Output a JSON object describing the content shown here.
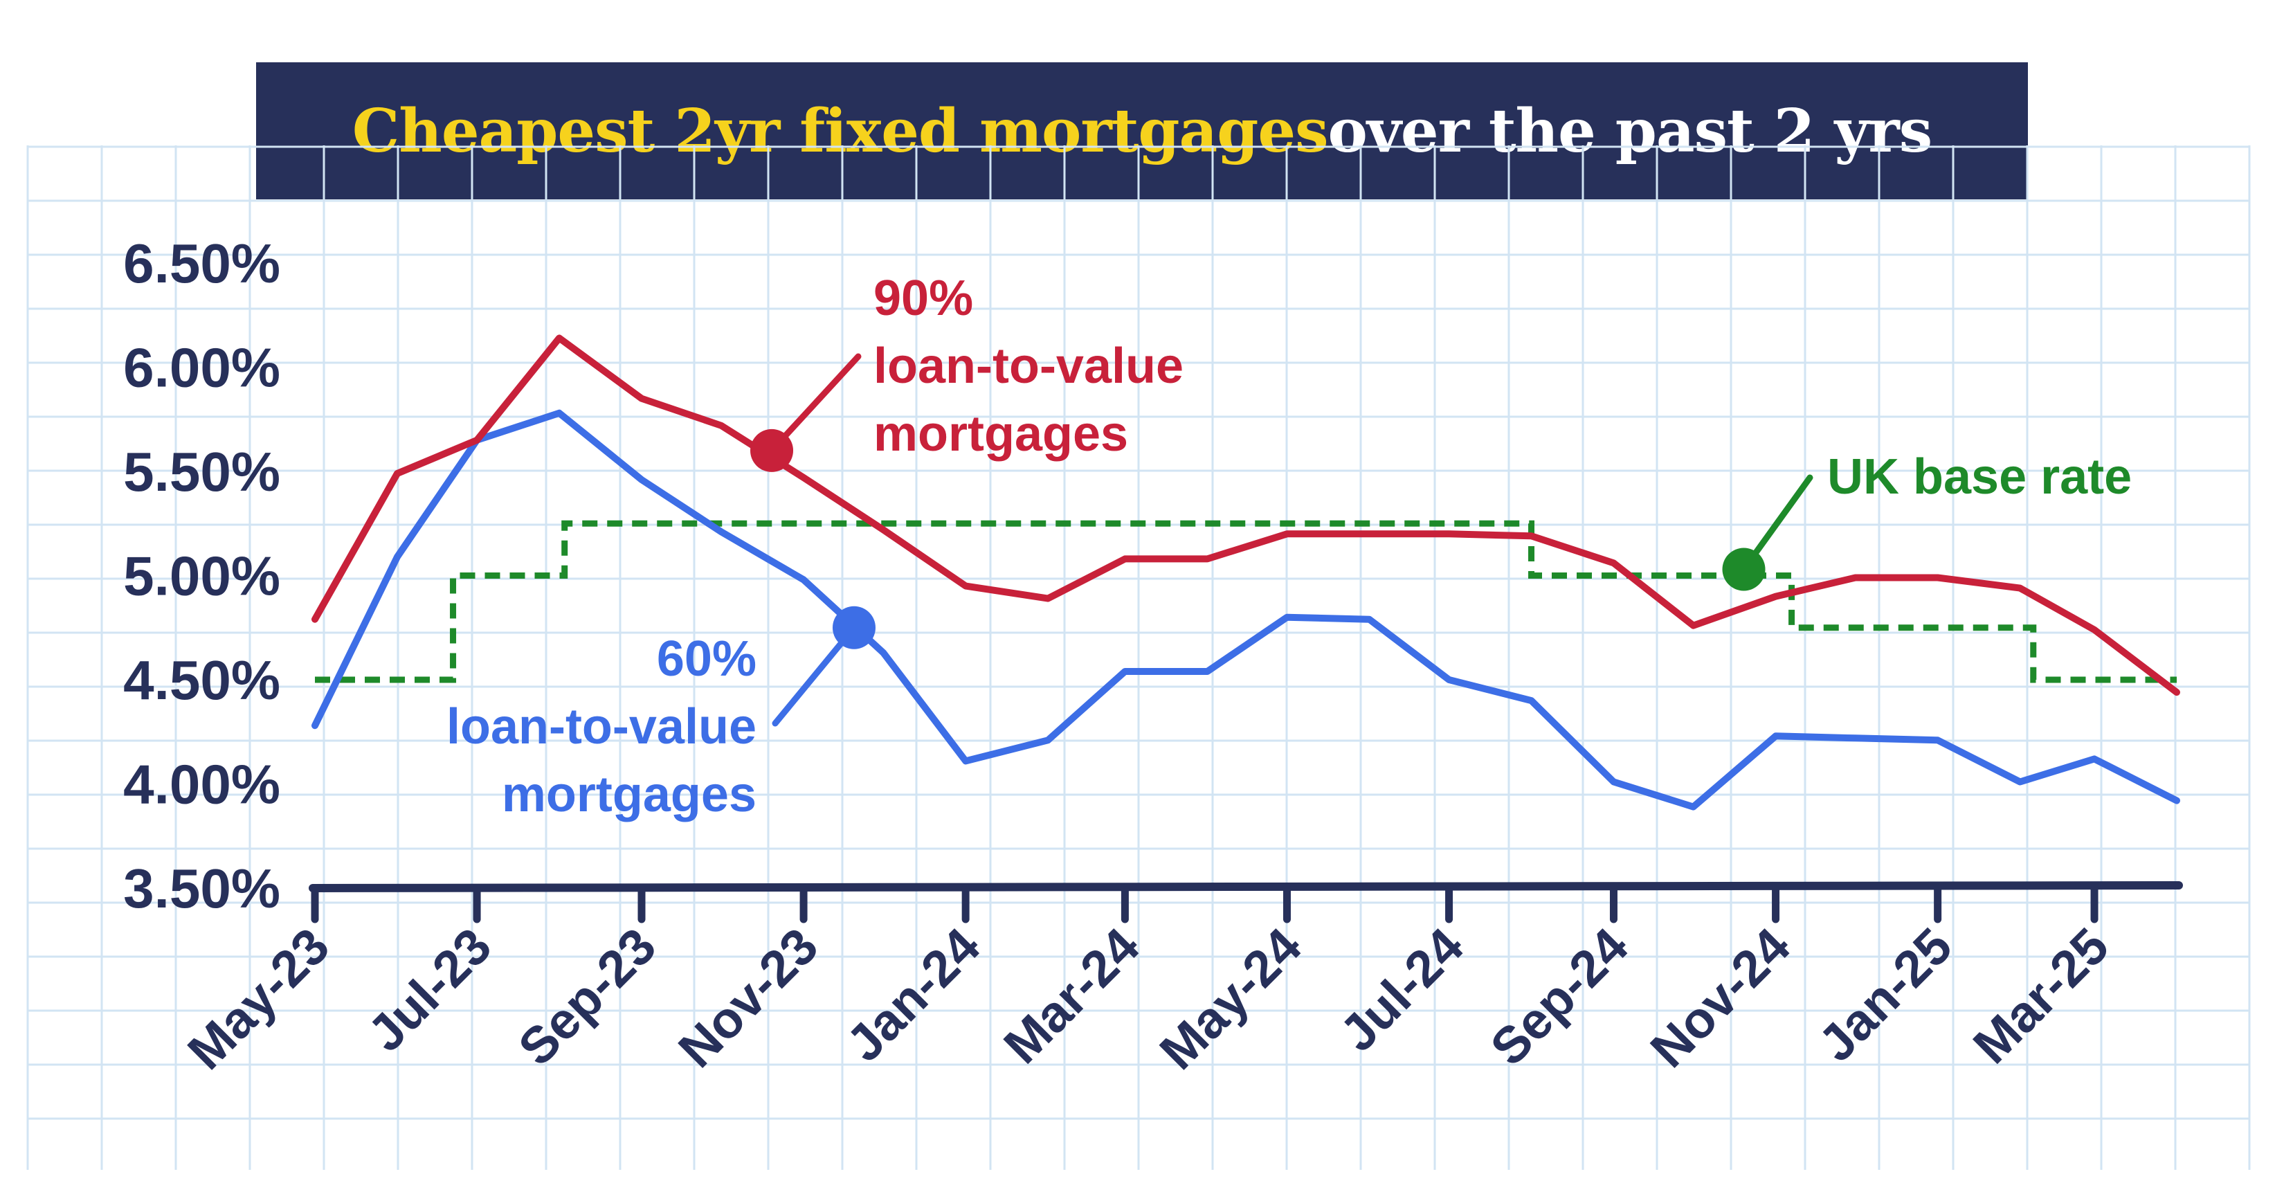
{
  "title": {
    "highlight": "Cheapest 2yr fixed mortgages",
    "rest": " over the past 2 yrs"
  },
  "colors": {
    "ltv90": "#c8213a",
    "ltv60": "#3d6ee6",
    "base": "#1e8a2a",
    "axis": "#27305a",
    "title_bg": "#27305a",
    "title_highlight": "#f6d21d",
    "grid": "#d2e4f3"
  },
  "chart_data": {
    "type": "line",
    "ylim": [
      3.5,
      6.5
    ],
    "yticks": [
      3.5,
      4.0,
      4.5,
      5.0,
      5.5,
      6.0,
      6.5
    ],
    "ytick_labels": [
      "3.50%",
      "4.00%",
      "4.50%",
      "5.00%",
      "5.50%",
      "6.00%",
      "6.50%"
    ],
    "xtick_labels": [
      "May-23",
      "Jul-23",
      "Sep-23",
      "Nov-23",
      "Jan-24",
      "Mar-24",
      "May-24",
      "Jul-24",
      "Sep-24",
      "Nov-24",
      "Jan-25",
      "Mar-25"
    ],
    "xtick_dates": [
      "2023-05-01",
      "2023-07-01",
      "2023-09-01",
      "2023-11-01",
      "2024-01-01",
      "2024-03-01",
      "2024-05-01",
      "2024-07-01",
      "2024-09-01",
      "2024-11-01",
      "2025-01-01",
      "2025-03-01"
    ],
    "series": [
      {
        "name_lines": [
          "90%",
          "loan-to-value",
          "mortgages"
        ],
        "style": "solid",
        "color_key": "ltv90",
        "x": [
          "2023-05-01",
          "2023-06-01",
          "2023-07-01",
          "2023-08-01",
          "2023-09-01",
          "2023-10-01",
          "2023-11-01",
          "2023-12-01",
          "2024-01-01",
          "2024-02-01",
          "2024-03-01",
          "2024-04-01",
          "2024-05-01",
          "2024-06-01",
          "2024-07-01",
          "2024-08-01",
          "2024-09-01",
          "2024-10-01",
          "2024-11-01",
          "2024-12-01",
          "2025-01-01",
          "2025-02-01",
          "2025-03-01",
          "2025-04-01"
        ],
        "values": [
          4.79,
          5.49,
          5.65,
          6.14,
          5.85,
          5.72,
          5.47,
          5.22,
          4.95,
          4.89,
          5.08,
          5.08,
          5.2,
          5.2,
          5.2,
          5.19,
          5.06,
          4.76,
          4.9,
          4.99,
          4.99,
          4.94,
          4.74,
          4.44
        ],
        "marker_x": "2023-10-20",
        "marker_y": 5.6
      },
      {
        "name_lines": [
          "60%",
          "loan-to-value",
          "mortgages"
        ],
        "style": "solid",
        "color_key": "ltv60",
        "x": [
          "2023-05-01",
          "2023-06-01",
          "2023-07-01",
          "2023-08-01",
          "2023-09-01",
          "2023-10-01",
          "2023-11-01",
          "2023-12-01",
          "2024-01-01",
          "2024-02-01",
          "2024-03-01",
          "2024-04-01",
          "2024-05-01",
          "2024-06-01",
          "2024-07-01",
          "2024-08-01",
          "2024-09-01",
          "2024-10-01",
          "2024-11-01",
          "2024-12-01",
          "2025-01-01",
          "2025-02-01",
          "2025-03-01",
          "2025-04-01"
        ],
        "values": [
          4.28,
          5.09,
          5.65,
          5.78,
          5.46,
          5.21,
          4.98,
          4.63,
          4.11,
          4.21,
          4.54,
          4.54,
          4.8,
          4.79,
          4.5,
          4.4,
          4.01,
          3.89,
          4.23,
          4.22,
          4.21,
          4.01,
          4.12,
          3.92
        ],
        "marker_x": "2023-11-20",
        "marker_y": 4.75
      },
      {
        "name_lines": [
          "UK base rate"
        ],
        "style": "dashed-step",
        "color_key": "base",
        "x": [
          "2023-05-01",
          "2023-06-22",
          "2023-08-03",
          "2024-08-01",
          "2024-11-07",
          "2025-02-06",
          "2025-04-01"
        ],
        "values": [
          4.5,
          5.0,
          5.25,
          5.0,
          4.75,
          4.5,
          4.5
        ],
        "marker_x": "2024-10-20",
        "marker_y": 5.03
      }
    ]
  }
}
